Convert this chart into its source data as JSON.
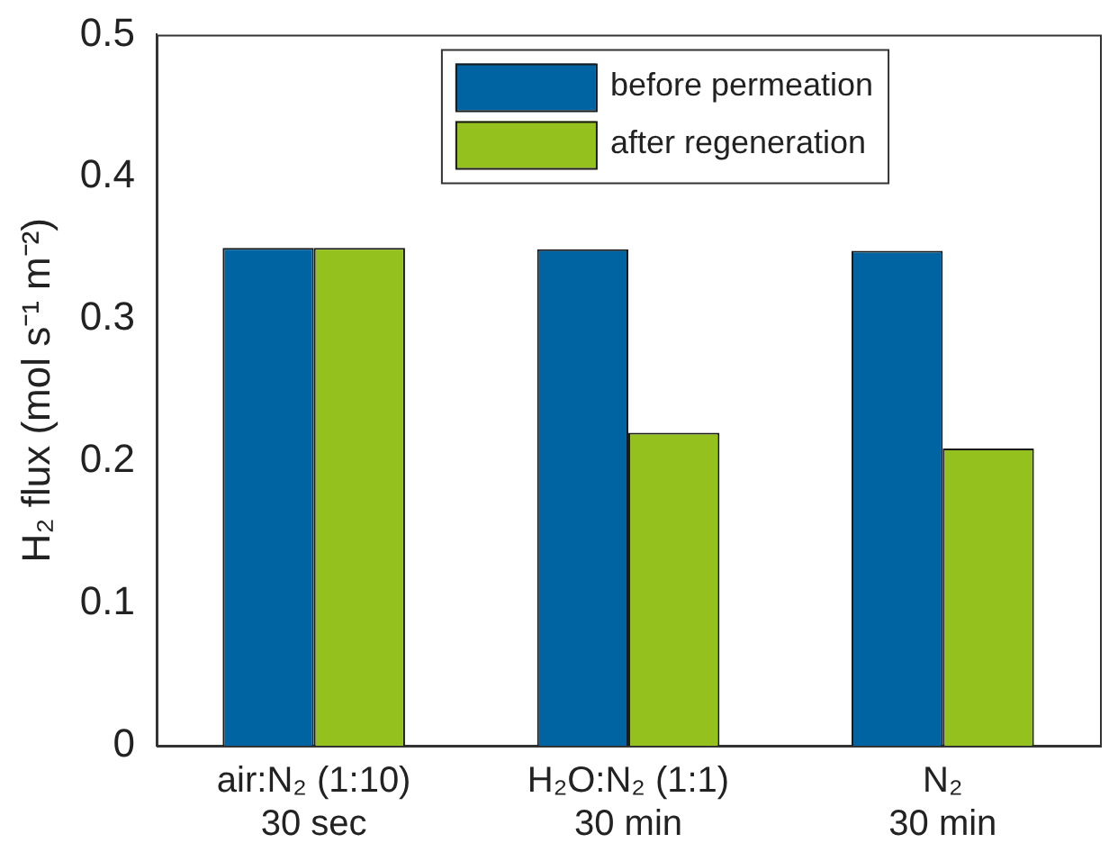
{
  "chart_data": {
    "type": "bar",
    "ylabel": "H₂ flux (mol s⁻¹ m⁻²)",
    "categories": [
      "air:N₂ (1:10)\n30 sec",
      "H₂O:N₂ (1:1)\n30 min",
      "N₂\n30 min"
    ],
    "series": [
      {
        "name": "before permeation",
        "color": "#0064a2",
        "values": [
          0.35,
          0.349,
          0.348
        ]
      },
      {
        "name": "after regeneration",
        "color": "#95c11f",
        "values": [
          0.35,
          0.22,
          0.209
        ]
      }
    ],
    "ylim": [
      0,
      0.5
    ],
    "yticks": [
      0,
      0.1,
      0.2,
      0.3,
      0.4,
      0.5
    ],
    "grid": false,
    "legend": "top"
  }
}
